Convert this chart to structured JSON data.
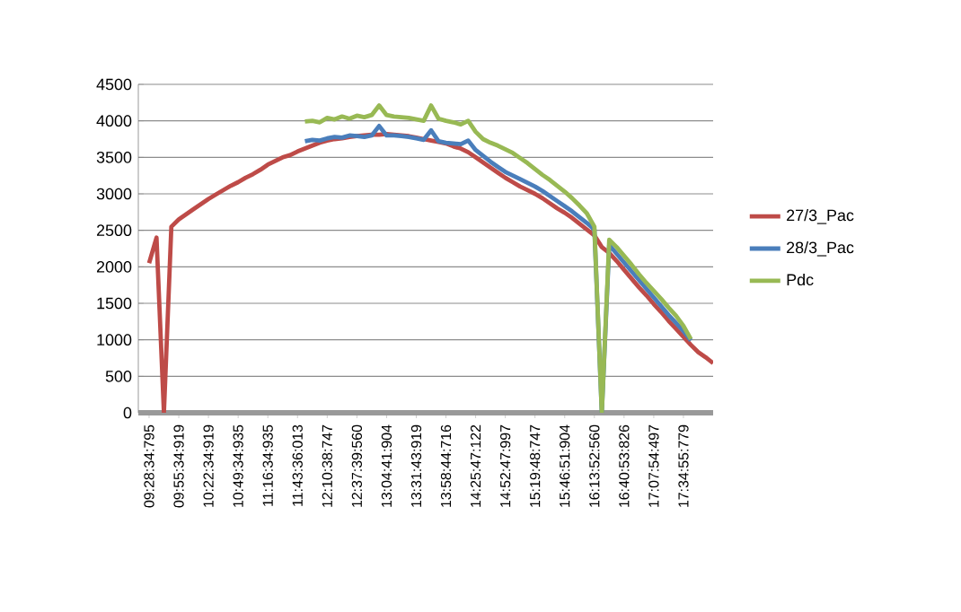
{
  "chart_data": {
    "type": "line",
    "categories": [
      "09:28:34:795",
      null,
      null,
      null,
      "09:55:34:919",
      null,
      null,
      null,
      "10:22:34:919",
      null,
      null,
      null,
      "10:49:34:935",
      null,
      null,
      null,
      "11:16:34:935",
      null,
      null,
      null,
      "11:43:36:013",
      null,
      null,
      null,
      "12:10:38:747",
      null,
      null,
      null,
      "12:37:39:560",
      null,
      null,
      null,
      "13:04:41:904",
      null,
      null,
      null,
      "13:31:43:919",
      null,
      null,
      null,
      "13:58:44:716",
      null,
      null,
      null,
      "14:25:47:122",
      null,
      null,
      null,
      "14:52:47:997",
      null,
      null,
      null,
      "15:19:48:747",
      null,
      null,
      null,
      "15:46:51:904",
      null,
      null,
      null,
      "16:13:52:560",
      null,
      null,
      null,
      "16:40:53:826",
      null,
      null,
      null,
      "17:07:54:497",
      null,
      null,
      null,
      "17:34:55:779",
      null,
      null,
      null,
      null
    ],
    "series": [
      {
        "name": "27/3_Pac",
        "color": "#be4b48",
        "values": [
          2050,
          2400,
          0,
          2550,
          2650,
          2720,
          2790,
          2860,
          2930,
          2990,
          3050,
          3110,
          3160,
          3220,
          3270,
          3330,
          3400,
          3450,
          3500,
          3530,
          3580,
          3620,
          3660,
          3700,
          3730,
          3750,
          3760,
          3780,
          3790,
          3800,
          3810,
          3810,
          3820,
          3810,
          3800,
          3790,
          3770,
          3750,
          3730,
          3710,
          3690,
          3650,
          3620,
          3570,
          3500,
          3430,
          3360,
          3290,
          3220,
          3160,
          3100,
          3050,
          3000,
          2940,
          2870,
          2800,
          2740,
          2670,
          2590,
          2510,
          2430,
          2270,
          2190,
          2080,
          1960,
          1840,
          1720,
          1610,
          1490,
          1380,
          1260,
          1150,
          1040,
          930,
          830,
          760,
          680
        ]
      },
      {
        "name": "28/3_Pac",
        "color": "#4a7ebb",
        "values": [
          null,
          null,
          null,
          null,
          null,
          null,
          null,
          null,
          null,
          null,
          null,
          null,
          null,
          null,
          null,
          null,
          null,
          null,
          null,
          null,
          null,
          3720,
          3740,
          3730,
          3760,
          3780,
          3770,
          3800,
          3790,
          3780,
          3800,
          3930,
          3800,
          3800,
          3790,
          3780,
          3760,
          3740,
          3870,
          3720,
          3700,
          3690,
          3680,
          3730,
          3600,
          3520,
          3440,
          3370,
          3300,
          3250,
          3200,
          3150,
          3100,
          3040,
          2970,
          2900,
          2830,
          2760,
          2680,
          2600,
          2510,
          0,
          2300,
          2180,
          2060,
          1940,
          1820,
          1700,
          1580,
          1460,
          1340,
          1230,
          1120,
          990,
          null,
          null,
          null
        ]
      },
      {
        "name": "Pdc",
        "color": "#98b954",
        "values": [
          null,
          null,
          null,
          null,
          null,
          null,
          null,
          null,
          null,
          null,
          null,
          null,
          null,
          null,
          null,
          null,
          null,
          null,
          null,
          null,
          null,
          3990,
          4000,
          3980,
          4040,
          4020,
          4060,
          4030,
          4070,
          4050,
          4080,
          4210,
          4080,
          4060,
          4050,
          4040,
          4020,
          4000,
          4210,
          4030,
          4000,
          3980,
          3950,
          4000,
          3850,
          3750,
          3700,
          3660,
          3610,
          3560,
          3490,
          3420,
          3340,
          3260,
          3190,
          3110,
          3030,
          2940,
          2840,
          2730,
          2550,
          0,
          2370,
          2270,
          2150,
          2030,
          1900,
          1780,
          1670,
          1560,
          1440,
          1330,
          1190,
          1010,
          null,
          null,
          null
        ]
      }
    ],
    "ylim": [
      0,
      4500
    ],
    "yticks": [
      0,
      500,
      1000,
      1500,
      2000,
      2500,
      3000,
      3500,
      4000,
      4500
    ],
    "grid": "y",
    "legend": "right",
    "marker": "none",
    "line_style": "solid"
  }
}
